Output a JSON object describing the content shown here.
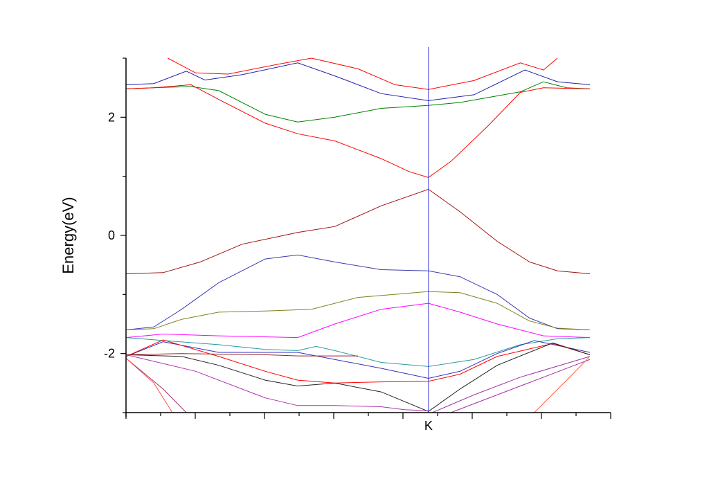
{
  "chart_data": {
    "type": "line",
    "ylabel": "Energy(eV)",
    "xlabel": "",
    "ylim": [
      -3,
      3
    ],
    "xlim": [
      0,
      1
    ],
    "y_ticks": [
      {
        "value": -2,
        "label": "-2"
      },
      {
        "value": 0,
        "label": "0"
      },
      {
        "value": 2,
        "label": "2"
      }
    ],
    "x_ticks": [
      {
        "value": 0.652,
        "label": "K"
      }
    ],
    "vertical_lines": [
      {
        "x": 0.652,
        "color": "#3a3ae0"
      }
    ],
    "grid": false,
    "legend": "none",
    "series": [
      {
        "color": "#ff0000",
        "points": [
          [
            0.09,
            3.0
          ],
          [
            0.15,
            2.75
          ],
          [
            0.22,
            2.73
          ],
          [
            0.33,
            2.9
          ],
          [
            0.4,
            3.0
          ],
          [
            0.5,
            2.82
          ],
          [
            0.58,
            2.55
          ],
          [
            0.652,
            2.47
          ],
          [
            0.75,
            2.62
          ],
          [
            0.85,
            2.92
          ],
          [
            0.9,
            2.8
          ],
          [
            0.93,
            3.0
          ]
        ]
      },
      {
        "color": "#2020b0",
        "points": [
          [
            0.0,
            2.55
          ],
          [
            0.06,
            2.57
          ],
          [
            0.13,
            2.78
          ],
          [
            0.17,
            2.63
          ],
          [
            0.25,
            2.72
          ],
          [
            0.37,
            2.92
          ],
          [
            0.45,
            2.7
          ],
          [
            0.55,
            2.4
          ],
          [
            0.652,
            2.28
          ],
          [
            0.75,
            2.38
          ],
          [
            0.86,
            2.8
          ],
          [
            0.93,
            2.6
          ],
          [
            1.0,
            2.55
          ]
        ]
      },
      {
        "color": "#008000",
        "points": [
          [
            0.0,
            2.48
          ],
          [
            0.06,
            2.5
          ],
          [
            0.14,
            2.52
          ],
          [
            0.2,
            2.45
          ],
          [
            0.3,
            2.05
          ],
          [
            0.37,
            1.92
          ],
          [
            0.45,
            2.0
          ],
          [
            0.55,
            2.15
          ],
          [
            0.652,
            2.2
          ],
          [
            0.72,
            2.25
          ],
          [
            0.85,
            2.43
          ],
          [
            0.9,
            2.6
          ],
          [
            0.95,
            2.5
          ],
          [
            1.0,
            2.48
          ]
        ]
      },
      {
        "color": "#ff0000",
        "points": [
          [
            0.0,
            2.48
          ],
          [
            0.06,
            2.5
          ],
          [
            0.14,
            2.55
          ],
          [
            0.2,
            2.3
          ],
          [
            0.3,
            1.9
          ],
          [
            0.37,
            1.72
          ],
          [
            0.45,
            1.6
          ],
          [
            0.55,
            1.3
          ],
          [
            0.61,
            1.08
          ],
          [
            0.652,
            0.98
          ],
          [
            0.7,
            1.25
          ],
          [
            0.78,
            1.85
          ],
          [
            0.85,
            2.42
          ],
          [
            0.9,
            2.5
          ],
          [
            1.0,
            2.48
          ]
        ]
      },
      {
        "color": "#a01010",
        "points": [
          [
            0.0,
            -0.65
          ],
          [
            0.08,
            -0.63
          ],
          [
            0.16,
            -0.45
          ],
          [
            0.25,
            -0.15
          ],
          [
            0.37,
            0.05
          ],
          [
            0.45,
            0.15
          ],
          [
            0.55,
            0.5
          ],
          [
            0.652,
            0.78
          ],
          [
            0.72,
            0.4
          ],
          [
            0.8,
            -0.1
          ],
          [
            0.87,
            -0.45
          ],
          [
            0.93,
            -0.6
          ],
          [
            1.0,
            -0.65
          ]
        ]
      },
      {
        "color": "#3a3ab0",
        "points": [
          [
            0.0,
            -1.6
          ],
          [
            0.06,
            -1.55
          ],
          [
            0.12,
            -1.25
          ],
          [
            0.2,
            -0.8
          ],
          [
            0.3,
            -0.4
          ],
          [
            0.37,
            -0.33
          ],
          [
            0.45,
            -0.45
          ],
          [
            0.55,
            -0.58
          ],
          [
            0.652,
            -0.6
          ],
          [
            0.72,
            -0.7
          ],
          [
            0.8,
            -1.0
          ],
          [
            0.87,
            -1.4
          ],
          [
            0.93,
            -1.58
          ],
          [
            1.0,
            -1.6
          ]
        ]
      },
      {
        "color": "#808020",
        "points": [
          [
            0.0,
            -1.6
          ],
          [
            0.06,
            -1.58
          ],
          [
            0.12,
            -1.42
          ],
          [
            0.2,
            -1.3
          ],
          [
            0.3,
            -1.28
          ],
          [
            0.4,
            -1.25
          ],
          [
            0.5,
            -1.05
          ],
          [
            0.652,
            -0.95
          ],
          [
            0.72,
            -0.97
          ],
          [
            0.8,
            -1.15
          ],
          [
            0.87,
            -1.45
          ],
          [
            0.93,
            -1.57
          ],
          [
            1.0,
            -1.6
          ]
        ]
      },
      {
        "color": "#ff00ff",
        "points": [
          [
            0.0,
            -1.73
          ],
          [
            0.08,
            -1.67
          ],
          [
            0.2,
            -1.7
          ],
          [
            0.37,
            -1.73
          ],
          [
            0.45,
            -1.5
          ],
          [
            0.55,
            -1.25
          ],
          [
            0.652,
            -1.15
          ],
          [
            0.72,
            -1.3
          ],
          [
            0.8,
            -1.5
          ],
          [
            0.9,
            -1.7
          ],
          [
            1.0,
            -1.73
          ]
        ]
      },
      {
        "color": "#2a9aa0",
        "points": [
          [
            0.0,
            -1.73
          ],
          [
            0.08,
            -1.78
          ],
          [
            0.2,
            -1.85
          ],
          [
            0.3,
            -1.93
          ],
          [
            0.37,
            -1.95
          ],
          [
            0.41,
            -1.88
          ],
          [
            0.45,
            -1.95
          ],
          [
            0.55,
            -2.15
          ],
          [
            0.652,
            -2.22
          ],
          [
            0.75,
            -2.1
          ],
          [
            0.85,
            -1.85
          ],
          [
            0.93,
            -1.75
          ],
          [
            1.0,
            -1.73
          ]
        ]
      },
      {
        "color": "#3030c0",
        "points": [
          [
            0.0,
            -2.05
          ],
          [
            0.08,
            -1.8
          ],
          [
            0.2,
            -1.98
          ],
          [
            0.37,
            -1.98
          ],
          [
            0.45,
            -2.1
          ],
          [
            0.55,
            -2.25
          ],
          [
            0.652,
            -2.42
          ],
          [
            0.72,
            -2.3
          ],
          [
            0.8,
            -2.0
          ],
          [
            0.88,
            -1.78
          ],
          [
            1.0,
            -1.98
          ]
        ]
      },
      {
        "color": "#ff0000",
        "points": [
          [
            0.0,
            -2.05
          ],
          [
            0.08,
            -1.77
          ],
          [
            0.2,
            -2.05
          ],
          [
            0.3,
            -2.3
          ],
          [
            0.37,
            -2.45
          ],
          [
            0.45,
            -2.5
          ],
          [
            0.55,
            -2.48
          ],
          [
            0.652,
            -2.47
          ],
          [
            0.72,
            -2.35
          ],
          [
            0.8,
            -2.05
          ],
          [
            0.92,
            -1.83
          ],
          [
            1.0,
            -2.02
          ]
        ]
      },
      {
        "color": "#202020",
        "points": [
          [
            0.0,
            -2.02
          ],
          [
            0.12,
            -2.05
          ],
          [
            0.2,
            -2.2
          ],
          [
            0.3,
            -2.45
          ],
          [
            0.37,
            -2.55
          ],
          [
            0.45,
            -2.5
          ],
          [
            0.55,
            -2.65
          ],
          [
            0.652,
            -2.98
          ],
          [
            0.72,
            -2.6
          ],
          [
            0.8,
            -2.2
          ],
          [
            0.92,
            -1.82
          ],
          [
            1.0,
            -2.02
          ]
        ]
      },
      {
        "color": "#a02020",
        "points": [
          [
            0.0,
            -2.02
          ],
          [
            0.12,
            -2.0
          ],
          [
            0.3,
            -2.02
          ],
          [
            0.37,
            -2.04
          ],
          [
            0.5,
            -2.04
          ]
        ]
      },
      {
        "color": "#a03070",
        "points": [
          [
            0.0,
            -2.08
          ],
          [
            0.08,
            -2.6
          ],
          [
            0.13,
            -3.0
          ]
        ]
      },
      {
        "color": "#ff5050",
        "points": [
          [
            0.0,
            -2.08
          ],
          [
            0.06,
            -2.5
          ],
          [
            0.1,
            -3.0
          ]
        ]
      },
      {
        "color": "#b030b0",
        "points": [
          [
            0.0,
            -2.02
          ],
          [
            0.15,
            -2.3
          ],
          [
            0.3,
            -2.75
          ],
          [
            0.37,
            -2.88
          ],
          [
            0.45,
            -2.88
          ],
          [
            0.55,
            -2.9
          ],
          [
            0.6,
            -2.95
          ],
          [
            0.652,
            -2.97
          ]
        ]
      },
      {
        "color": "#a030a0",
        "points": [
          [
            0.66,
            -3.0
          ],
          [
            0.75,
            -2.7
          ],
          [
            0.85,
            -2.4
          ],
          [
            1.0,
            -2.05
          ]
        ]
      },
      {
        "color": "#a030a0",
        "points": [
          [
            0.7,
            -3.0
          ],
          [
            0.8,
            -2.7
          ],
          [
            0.9,
            -2.4
          ],
          [
            1.0,
            -2.1
          ]
        ]
      },
      {
        "color": "#ff6040",
        "points": [
          [
            0.88,
            -3.0
          ],
          [
            0.95,
            -2.45
          ],
          [
            1.0,
            -2.05
          ]
        ]
      }
    ]
  }
}
